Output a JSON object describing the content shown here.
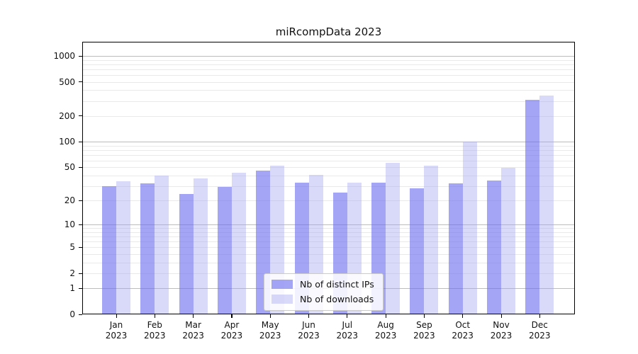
{
  "title": "miRcompData 2023",
  "legend": {
    "items": [
      {
        "label": "Nb of distinct IPs",
        "key": "ips"
      },
      {
        "label": "Nb of downloads",
        "key": "downloads"
      }
    ]
  },
  "colors": {
    "ips_bar": "rgba(110,110,240,0.62)",
    "downloads_bar": "rgba(160,160,240,0.40)",
    "gridline_minor": "#e9e9e9",
    "gridline_decade": "#bcbcbc",
    "axis": "#000000",
    "legend_border": "#cbcbcb"
  },
  "chart_data": {
    "type": "bar",
    "title": "miRcompData 2023",
    "categories": [
      "Jan 2023",
      "Feb 2023",
      "Mar 2023",
      "Apr 2023",
      "May 2023",
      "Jun 2023",
      "Jul 2023",
      "Aug 2023",
      "Sep 2023",
      "Oct 2023",
      "Nov 2023",
      "Dec 2023"
    ],
    "series": [
      {
        "name": "Nb of distinct IPs",
        "color": "rgba(110,110,240,0.62)",
        "values": [
          30,
          32,
          24,
          29,
          46,
          33,
          25,
          33,
          28,
          32,
          35,
          310
        ]
      },
      {
        "name": "Nb of downloads",
        "color": "rgba(160,160,240,0.40)",
        "values": [
          34,
          40,
          37,
          43,
          52,
          41,
          33,
          56,
          52,
          100,
          49,
          345
        ]
      }
    ],
    "y_scale": "log1p",
    "ylim": [
      0,
      1400
    ],
    "y_ticks": [
      0,
      1,
      2,
      5,
      10,
      20,
      50,
      100,
      200,
      500,
      1000
    ],
    "y_minor_gridlines": [
      3,
      4,
      6,
      7,
      8,
      9,
      30,
      40,
      60,
      70,
      80,
      90,
      300,
      400,
      600,
      700,
      800,
      900
    ],
    "decade_gridlines": [
      1,
      10,
      100,
      1000
    ],
    "grid": true,
    "legend_position": "inside-bottom-center",
    "xlabel": "",
    "ylabel": ""
  }
}
